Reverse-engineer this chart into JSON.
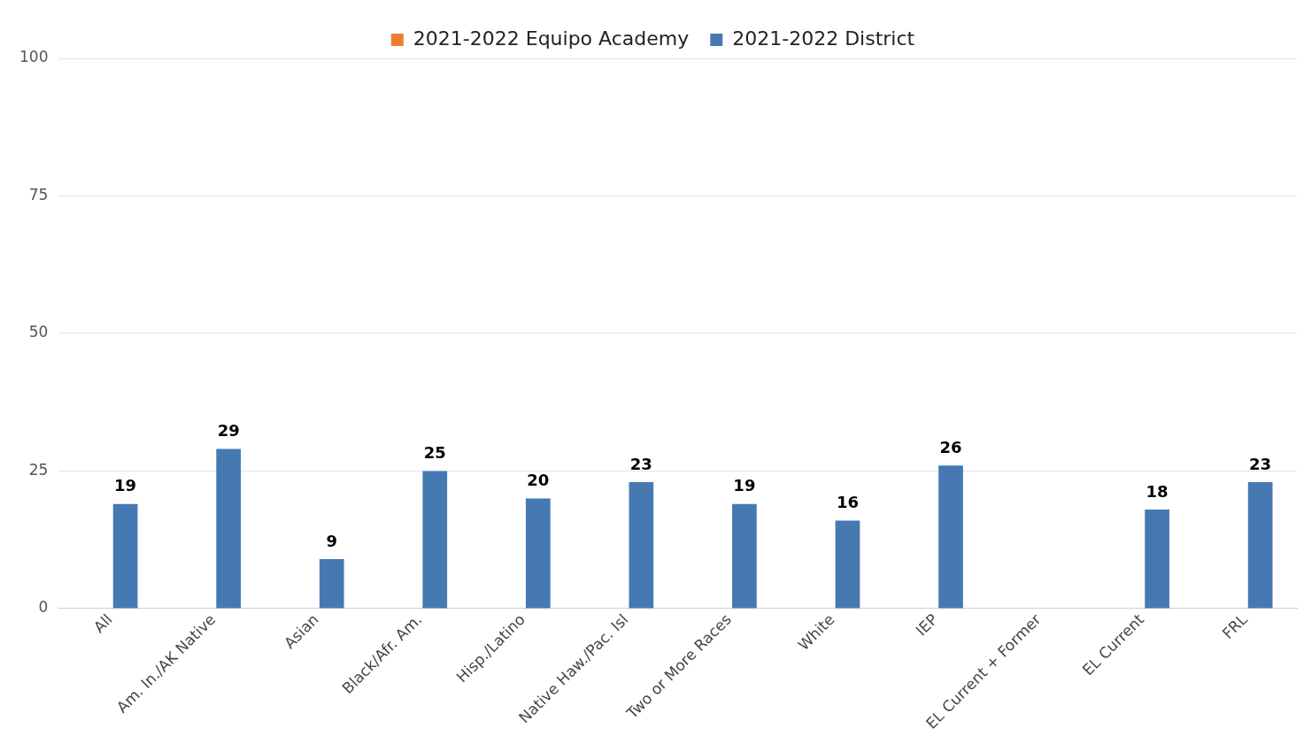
{
  "chart_data": {
    "type": "bar",
    "categories": [
      "All",
      "Am. In./AK Native",
      "Asian",
      "Black/Afr. Am.",
      "Hisp./Latino",
      "Native Haw./Pac. Isl",
      "Two or More Races",
      "White",
      "IEP",
      "EL Current + Former",
      "EL Current",
      "FRL"
    ],
    "series": [
      {
        "name": "2021-2022 Equipo Academy",
        "color": "#ed7d31",
        "values": [
          null,
          null,
          null,
          null,
          null,
          null,
          null,
          null,
          null,
          null,
          null,
          null
        ]
      },
      {
        "name": "2021-2022 District",
        "color": "#4679b2",
        "values": [
          19,
          29,
          9,
          25,
          20,
          23,
          19,
          16,
          26,
          null,
          18,
          23
        ]
      }
    ],
    "ylim": [
      0,
      100
    ],
    "yticks": [
      0,
      25,
      50,
      75,
      100
    ],
    "grid": "y",
    "legend": "top",
    "data_labels": true
  }
}
